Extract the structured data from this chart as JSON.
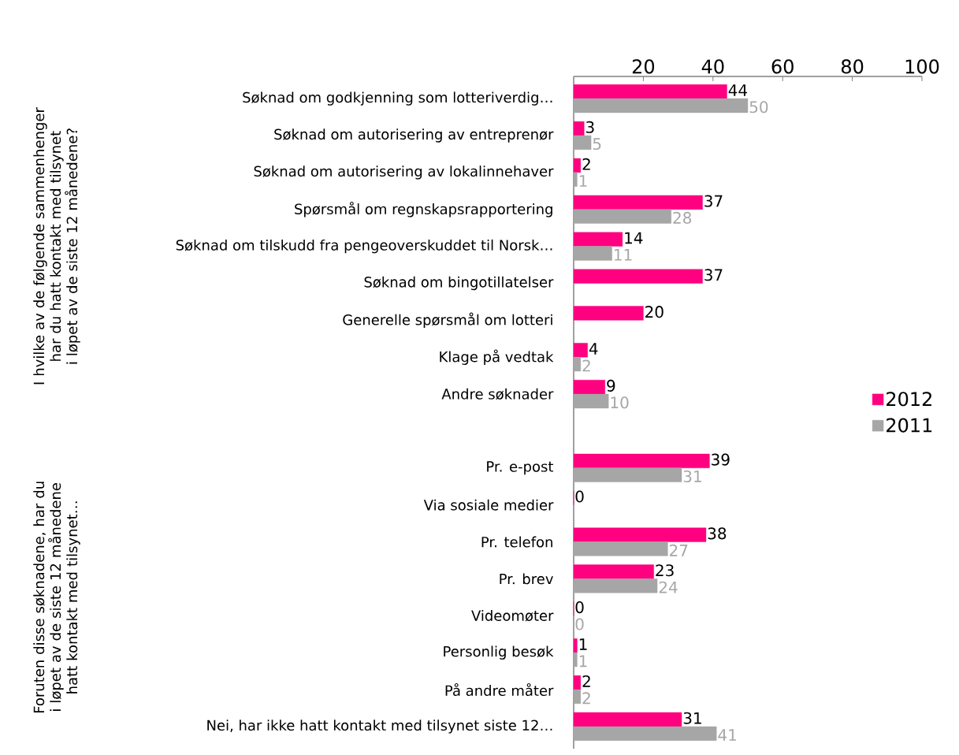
{
  "chart_data": {
    "type": "bar",
    "orientation": "horizontal",
    "categories": [
      "Søknad om godkjenning som lotteriverdig…",
      "Søknad om autorisering av entreprenør",
      "Søknad om autorisering av lokalinnehaver",
      "Spørsmål om regnskapsrapportering",
      "Søknad om tilskudd fra pengeoverskuddet til Norsk…",
      "Søknad om bingotillatelser",
      "Generelle spørsmål om lotteri",
      "Klage på vedtak",
      "Andre søknader",
      null,
      "Pr. e-post",
      "Via sosiale medier",
      "Pr. telefon",
      "Pr. brev",
      "Videomøter",
      "Personlig besøk",
      "På andre måter",
      "Nei, har ikke hatt kontakt med tilsynet siste 12…"
    ],
    "series": [
      {
        "name": "2012",
        "color": "#ff0080",
        "values": [
          44,
          3,
          2,
          37,
          14,
          37,
          20,
          4,
          9,
          null,
          39,
          0,
          38,
          23,
          0,
          1,
          2,
          31
        ]
      },
      {
        "name": "2011",
        "color": "#a6a6a6",
        "values": [
          50,
          5,
          1,
          28,
          11,
          null,
          null,
          2,
          10,
          null,
          31,
          null,
          27,
          24,
          0,
          1,
          2,
          41
        ]
      }
    ],
    "xlim": [
      0,
      100
    ],
    "xticks": [
      20,
      40,
      60,
      80,
      100
    ],
    "annotations": [
      "I hvilke av de følgende sammenhenger har du hatt kontakt med tilsynet i løpet av de siste 12 månedene?",
      "Foruten disse søknadene, har du i løpet av de siste 12 månedene hatt kontakt med tilsynet…"
    ],
    "data_labels": true,
    "legend": "right"
  }
}
